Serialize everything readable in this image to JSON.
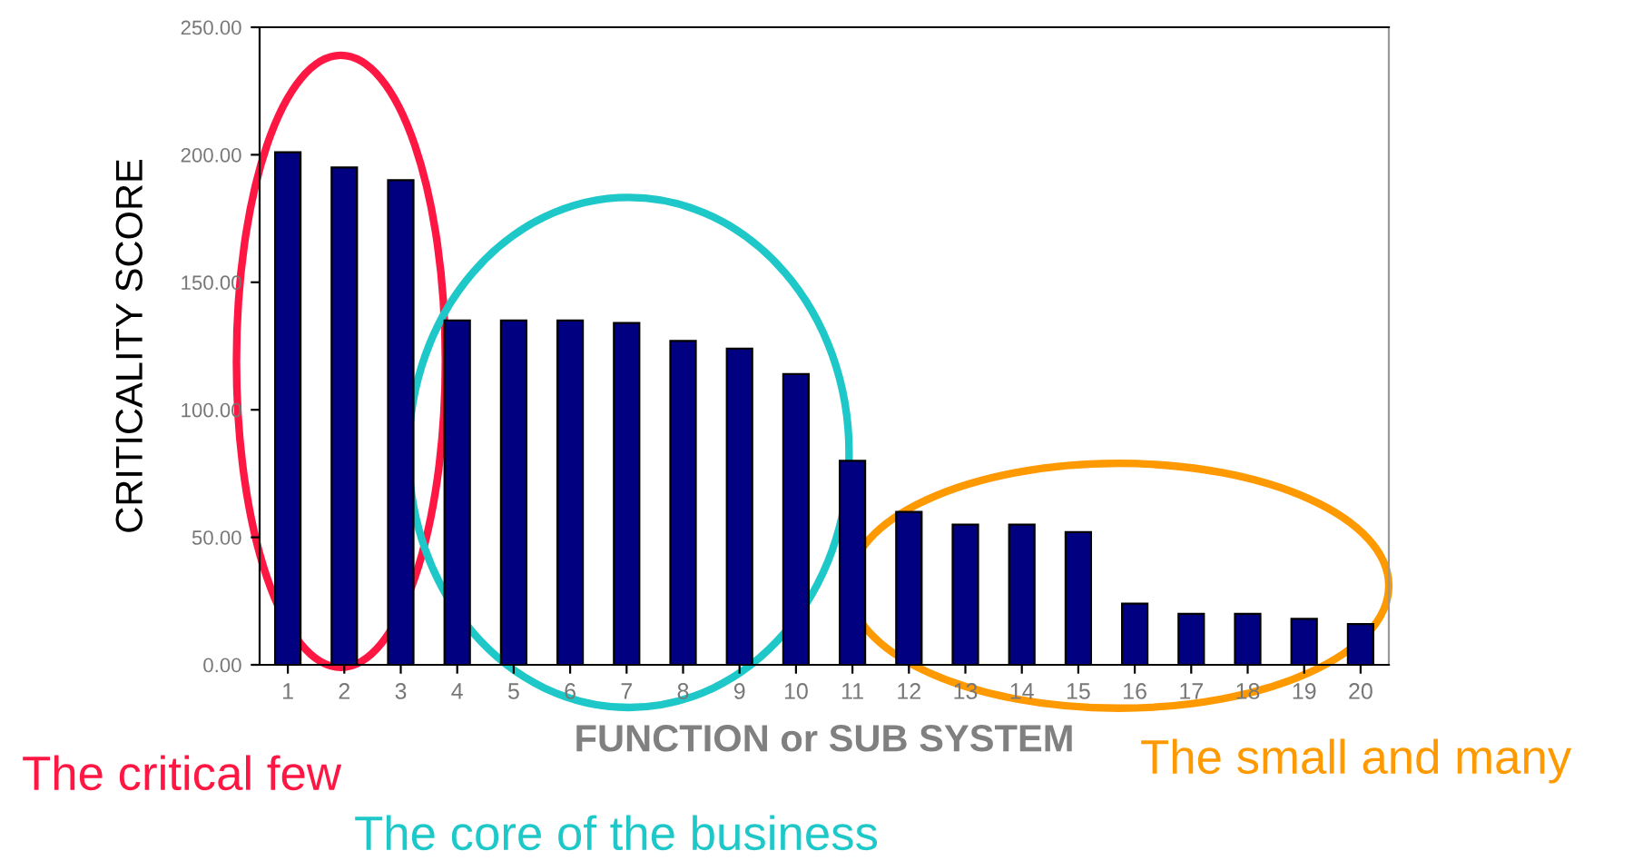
{
  "chart_data": {
    "type": "bar",
    "xlabel": "FUNCTION or SUB SYSTEM",
    "ylabel": "CRITICALITY SCORE",
    "categories": [
      "1",
      "2",
      "3",
      "4",
      "5",
      "6",
      "7",
      "8",
      "9",
      "10",
      "11",
      "12",
      "13",
      "14",
      "15",
      "16",
      "17",
      "18",
      "19",
      "20"
    ],
    "values": [
      201,
      195,
      190,
      135,
      135,
      135,
      134,
      127,
      124,
      114,
      80,
      60,
      55,
      55,
      52,
      24,
      20,
      20,
      18,
      16
    ],
    "color": "#000080",
    "ylim": [
      0,
      250
    ],
    "yticks": [
      {
        "value": 0,
        "label": "0.00"
      },
      {
        "value": 50,
        "label": "50.00"
      },
      {
        "value": 100,
        "label": "100.00"
      },
      {
        "value": 150,
        "label": "150.00"
      },
      {
        "value": 200,
        "label": "200.00"
      },
      {
        "value": 250,
        "label": "250.00"
      }
    ],
    "grid": false,
    "annotations": [
      "The critical few",
      "The core of the business",
      "The small and many"
    ]
  }
}
